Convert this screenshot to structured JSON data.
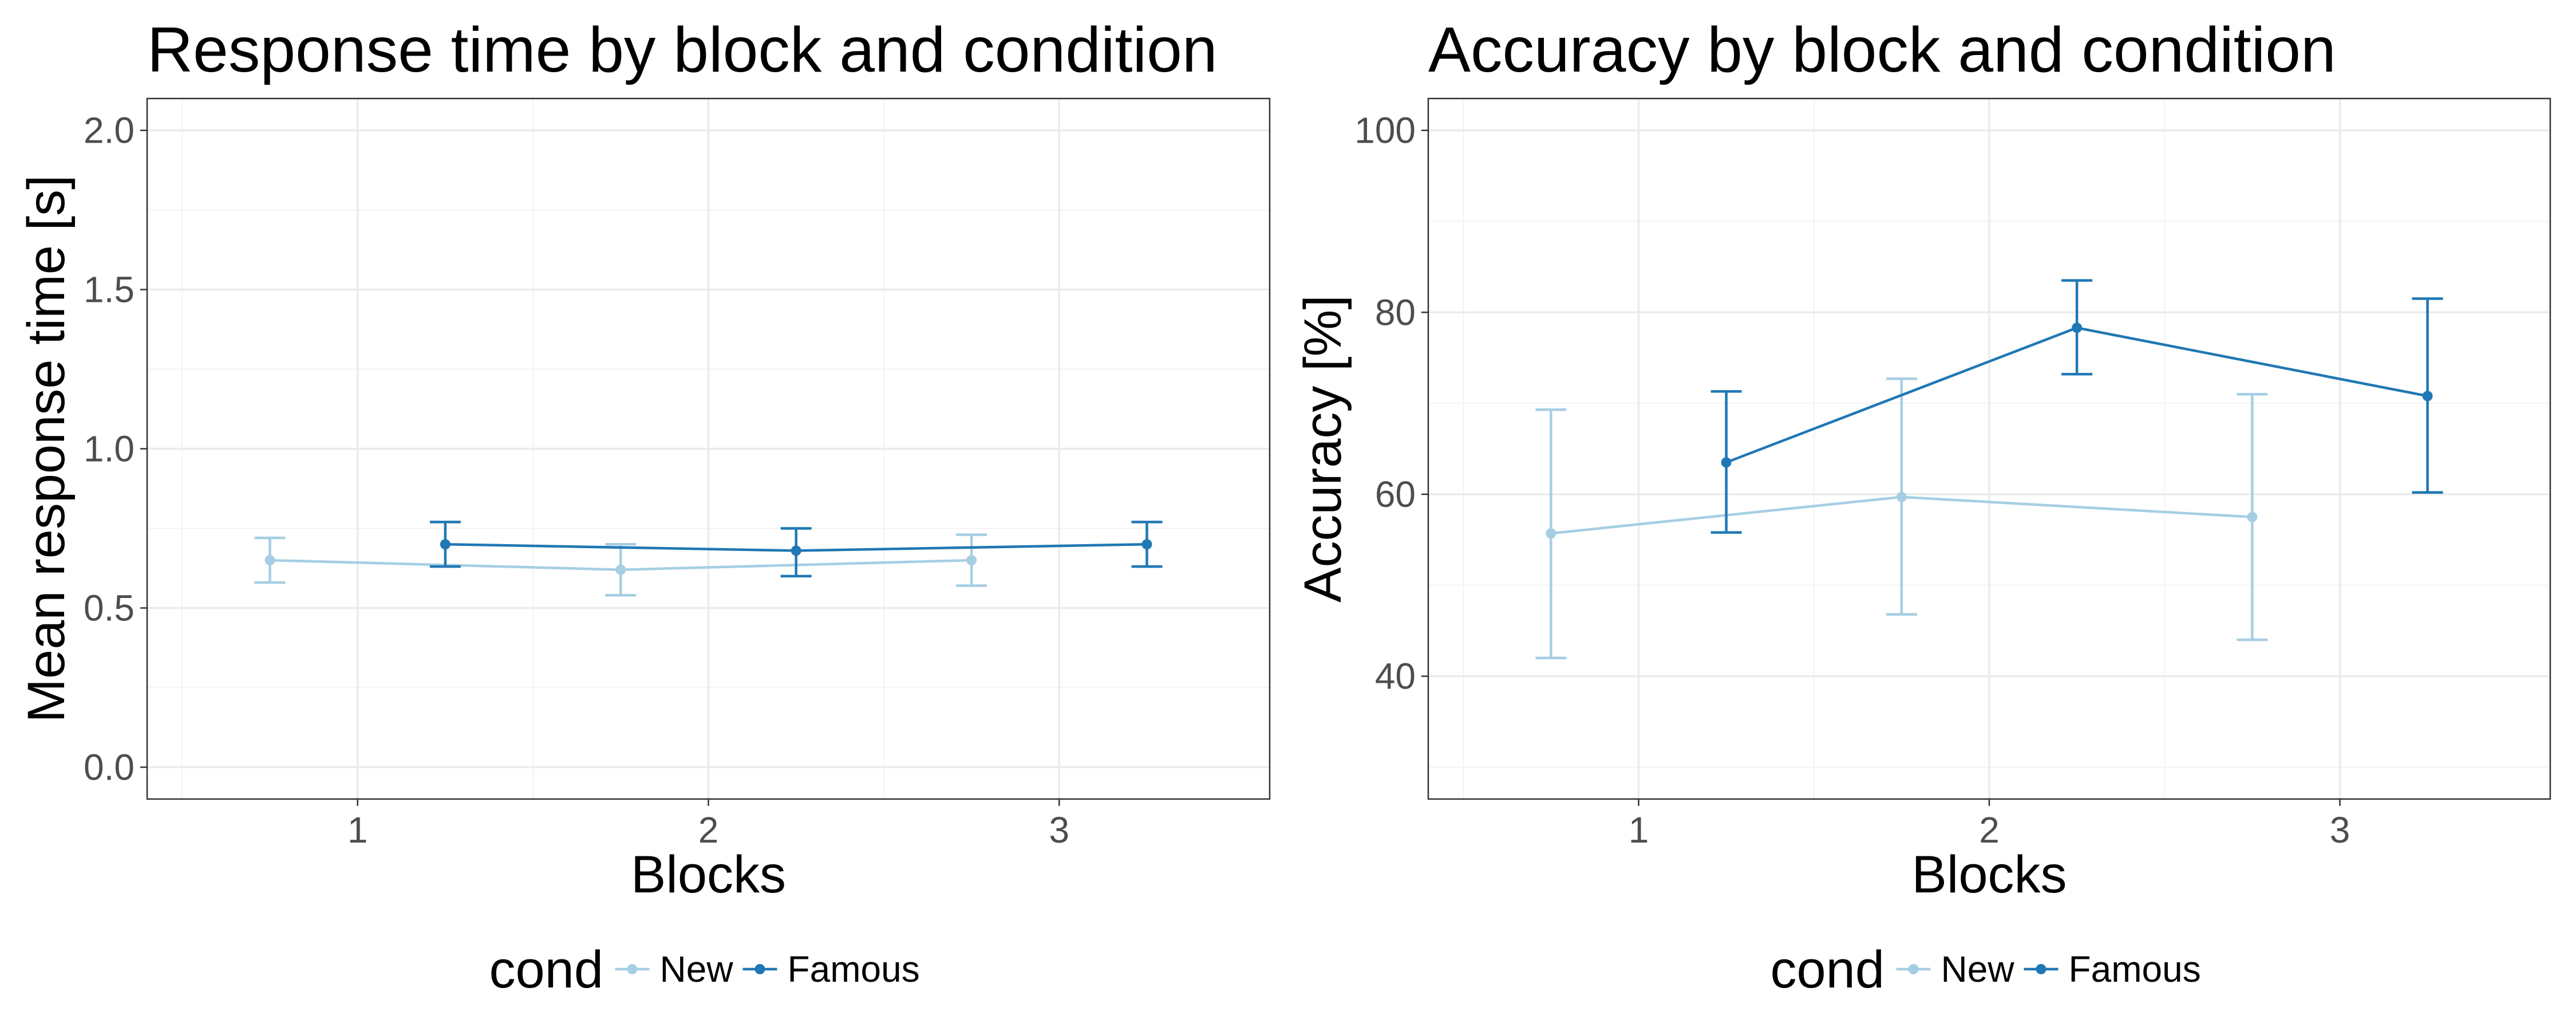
{
  "colors": {
    "New": "#a6cee3",
    "Famous": "#1f78b4"
  },
  "chart_data": [
    {
      "type": "line",
      "title": "Response time by block and condition",
      "xlabel": "Blocks",
      "ylabel": "Mean response time [s]",
      "x_ticks": [
        "1",
        "2",
        "3"
      ],
      "xlim": [
        0.4,
        3.6
      ],
      "ylim": [
        -0.1,
        2.1
      ],
      "y_ticks": [
        0.0,
        0.5,
        1.0,
        1.5,
        2.0
      ],
      "y_tick_labels": [
        "0.0",
        "0.5",
        "1.0",
        "1.5",
        "2.0"
      ],
      "legend_title": "cond",
      "legend_position": "bottom",
      "series": [
        {
          "name": "New",
          "x": [
            0.75,
            1.75,
            2.75
          ],
          "y": [
            0.65,
            0.62,
            0.65
          ],
          "ymin": [
            0.58,
            0.54,
            0.57
          ],
          "ymax": [
            0.72,
            0.7,
            0.73
          ]
        },
        {
          "name": "Famous",
          "x": [
            1.25,
            2.25,
            3.25
          ],
          "y": [
            0.7,
            0.68,
            0.7
          ],
          "ymin": [
            0.63,
            0.6,
            0.63
          ],
          "ymax": [
            0.77,
            0.75,
            0.77
          ]
        }
      ]
    },
    {
      "type": "line",
      "title": "Accuracy by block and condition",
      "xlabel": "Blocks",
      "ylabel": "Accuracy [%]",
      "x_ticks": [
        "1",
        "2",
        "3"
      ],
      "xlim": [
        0.4,
        3.6
      ],
      "ylim": [
        26.5,
        103.5
      ],
      "y_ticks": [
        40,
        60,
        80,
        100
      ],
      "y_tick_labels": [
        "40",
        "60",
        "80",
        "100"
      ],
      "legend_title": "cond",
      "legend_position": "bottom",
      "series": [
        {
          "name": "New",
          "x": [
            0.75,
            1.75,
            2.75
          ],
          "y": [
            55.7,
            59.7,
            57.5
          ],
          "ymin": [
            42.0,
            46.8,
            44.0
          ],
          "ymax": [
            69.3,
            72.7,
            71.0
          ]
        },
        {
          "name": "Famous",
          "x": [
            1.25,
            2.25,
            3.25
          ],
          "y": [
            63.5,
            78.3,
            70.8
          ],
          "ymin": [
            55.8,
            73.2,
            60.2
          ],
          "ymax": [
            71.3,
            83.5,
            81.5
          ]
        }
      ]
    }
  ]
}
